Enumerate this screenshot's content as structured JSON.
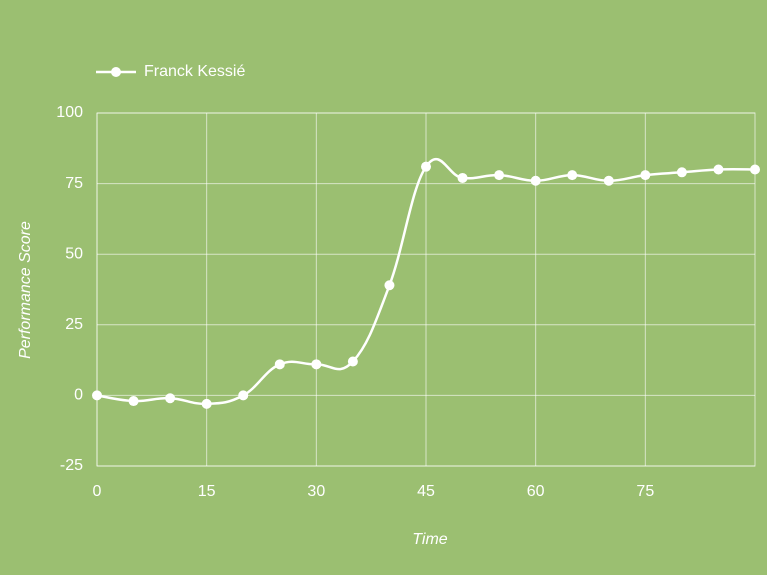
{
  "chart_data": {
    "type": "line",
    "x_label": "Time",
    "y_label": "Performance Score",
    "x": [
      0,
      5,
      10,
      15,
      20,
      25,
      30,
      35,
      40,
      45,
      50,
      55,
      60,
      65,
      70,
      75,
      80,
      85,
      90
    ],
    "series": [
      {
        "name": "Franck Kessié",
        "color": "#ffffff",
        "values": [
          0,
          -2,
          -1,
          -3,
          0,
          11,
          11,
          12,
          39,
          81,
          77,
          78,
          76,
          78,
          76,
          78,
          79,
          80,
          80
        ]
      }
    ],
    "xlim": [
      0,
      90
    ],
    "xticks": [
      0,
      15,
      30,
      45,
      60,
      75
    ],
    "ylim": [
      -25,
      100
    ],
    "yticks": [
      -25,
      0,
      25,
      50,
      75,
      100
    ],
    "grid": true,
    "legend": "top-left",
    "background": "#9bbf71"
  }
}
